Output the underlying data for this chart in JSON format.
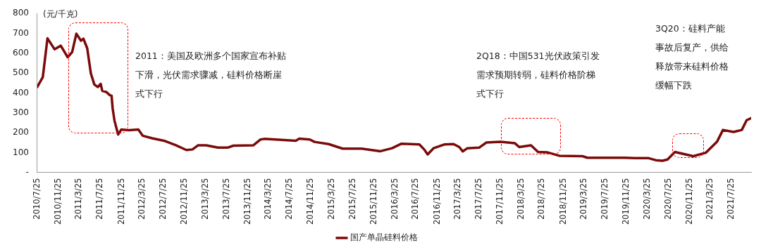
{
  "chart_data": {
    "type": "line",
    "ylabel": "(元/千克)",
    "x": [
      "2010-07-25",
      "2010-08-26",
      "2010-09-22",
      "2010-11-02",
      "2010-12-08",
      "2011-01-17",
      "2011-02-12",
      "2011-03-08",
      "2011-04-04",
      "2011-04-18",
      "2011-05-10",
      "2011-05-31",
      "2011-06-20",
      "2011-07-10",
      "2011-07-27",
      "2011-08-05",
      "2011-08-28",
      "2011-09-18",
      "2011-09-28",
      "2011-10-04",
      "2011-10-15",
      "2011-11-05",
      "2011-11-23",
      "2012-01-05",
      "2012-03-01",
      "2012-03-26",
      "2012-05-20",
      "2012-07-27",
      "2012-10-04",
      "2012-12-04",
      "2013-01-08",
      "2013-02-10",
      "2013-03-28",
      "2013-06-05",
      "2013-07-30",
      "2013-09-02",
      "2013-12-27",
      "2014-02-06",
      "2014-02-27",
      "2014-08-29",
      "2014-09-18",
      "2014-11-18",
      "2014-12-15",
      "2015-03-07",
      "2015-05-27",
      "2015-09-14",
      "2016-01-01",
      "2016-03-08",
      "2016-05-02",
      "2016-08-13",
      "2016-09-10",
      "2016-09-30",
      "2016-11-03",
      "2017-01-04",
      "2017-02-27",
      "2017-04-01",
      "2017-04-21",
      "2017-05-18",
      "2017-07-25",
      "2017-09-05",
      "2017-11-26",
      "2018-02-17",
      "2018-03-14",
      "2018-05-21",
      "2018-07-01",
      "2018-08-25",
      "2018-11-01",
      "2019-03-15",
      "2019-04-12",
      "2019-11-18",
      "2020-01-11",
      "2020-04-01",
      "2020-05-12",
      "2020-06-20",
      "2020-07-19",
      "2020-08-31",
      "2020-12-15",
      "2021-02-25",
      "2021-05-01",
      "2021-06-05",
      "2021-08-05",
      "2021-09-22",
      "2021-10-20",
      "2021-11-15"
    ],
    "series": [
      {
        "name": "国产单晶硅料价格",
        "color": "#7b0a0a",
        "values": [
          430,
          480,
          675,
          620,
          638,
          580,
          606,
          698,
          663,
          673,
          625,
          499,
          443,
          430,
          446,
          411,
          405,
          389,
          386,
          323,
          260,
          191,
          216,
          213,
          216,
          185,
          172,
          160,
          137,
          113,
          116,
          137,
          137,
          125,
          125,
          135,
          137,
          166,
          169,
          160,
          170,
          166,
          154,
          143,
          120,
          120,
          107,
          122,
          145,
          141,
          116,
          91,
          122,
          141,
          143,
          128,
          106,
          122,
          125,
          151,
          154,
          147,
          128,
          137,
          103,
          101,
          84,
          82,
          74,
          74,
          72,
          72,
          62,
          59,
          65,
          103,
          82,
          99,
          154,
          214,
          204,
          214,
          263,
          273
        ]
      }
    ],
    "xlim": [
      "2010-07-25",
      "2021-11-15"
    ],
    "xticks": [
      {
        "value": "2010-07-25",
        "label": "2010/7/25"
      },
      {
        "value": "2010-11-25",
        "label": "2010/11/25"
      },
      {
        "value": "2011-03-25",
        "label": "2011/3/25"
      },
      {
        "value": "2011-07-25",
        "label": "2011/7/25"
      },
      {
        "value": "2011-11-25",
        "label": "2011/11/25"
      },
      {
        "value": "2012-03-25",
        "label": "2012/3/25"
      },
      {
        "value": "2012-07-25",
        "label": "2012/7/25"
      },
      {
        "value": "2012-11-25",
        "label": "2012/11/25"
      },
      {
        "value": "2013-03-25",
        "label": "2013/3/25"
      },
      {
        "value": "2013-07-25",
        "label": "2013/7/25"
      },
      {
        "value": "2013-11-25",
        "label": "2013/11/25"
      },
      {
        "value": "2014-03-25",
        "label": "2014/3/25"
      },
      {
        "value": "2014-07-25",
        "label": "2014/7/25"
      },
      {
        "value": "2014-11-25",
        "label": "2014/11/25"
      },
      {
        "value": "2015-03-25",
        "label": "2015/3/25"
      },
      {
        "value": "2015-07-25",
        "label": "2015/7/25"
      },
      {
        "value": "2015-11-25",
        "label": "2015/11/25"
      },
      {
        "value": "2016-03-25",
        "label": "2016/3/25"
      },
      {
        "value": "2016-07-25",
        "label": "2016/7/25"
      },
      {
        "value": "2016-11-25",
        "label": "2016/11/25"
      },
      {
        "value": "2017-03-25",
        "label": "2017/3/25"
      },
      {
        "value": "2017-07-25",
        "label": "2017/7/25"
      },
      {
        "value": "2017-11-25",
        "label": "2017/11/25"
      },
      {
        "value": "2018-03-25",
        "label": "2018/3/25"
      },
      {
        "value": "2018-07-25",
        "label": "2018/7/25"
      },
      {
        "value": "2018-11-25",
        "label": "2018/11/25"
      },
      {
        "value": "2019-03-25",
        "label": "2019/3/25"
      },
      {
        "value": "2019-07-25",
        "label": "2019/7/25"
      },
      {
        "value": "2019-11-25",
        "label": "2019/11/25"
      },
      {
        "value": "2020-03-25",
        "label": "2020/3/25"
      },
      {
        "value": "2020-07-25",
        "label": "2020/7/25"
      },
      {
        "value": "2020-11-25",
        "label": "2020/11/25"
      },
      {
        "value": "2021-03-25",
        "label": "2021/3/25"
      },
      {
        "value": "2021-07-25",
        "label": "2021/7/25"
      }
    ],
    "ylim": [
      0,
      800
    ],
    "yticks": [
      {
        "value": 0,
        "label": "-"
      },
      100,
      200,
      300,
      400,
      500,
      600,
      700,
      800
    ],
    "annotations": [
      "2011：美国及欧洲多个国家宣布补贴下滑，光伏需求骤减，硅料价格断崖式下行",
      "2Q18：中国531光伏政策引发需求预期转弱，硅料价格阶梯式下行",
      "3Q20：硅料产能事故后复产，供给释放带来硅料价格缓幅下跌"
    ],
    "grid": false,
    "legend": "bottom",
    "marker": "none",
    "line_style": "solid"
  }
}
